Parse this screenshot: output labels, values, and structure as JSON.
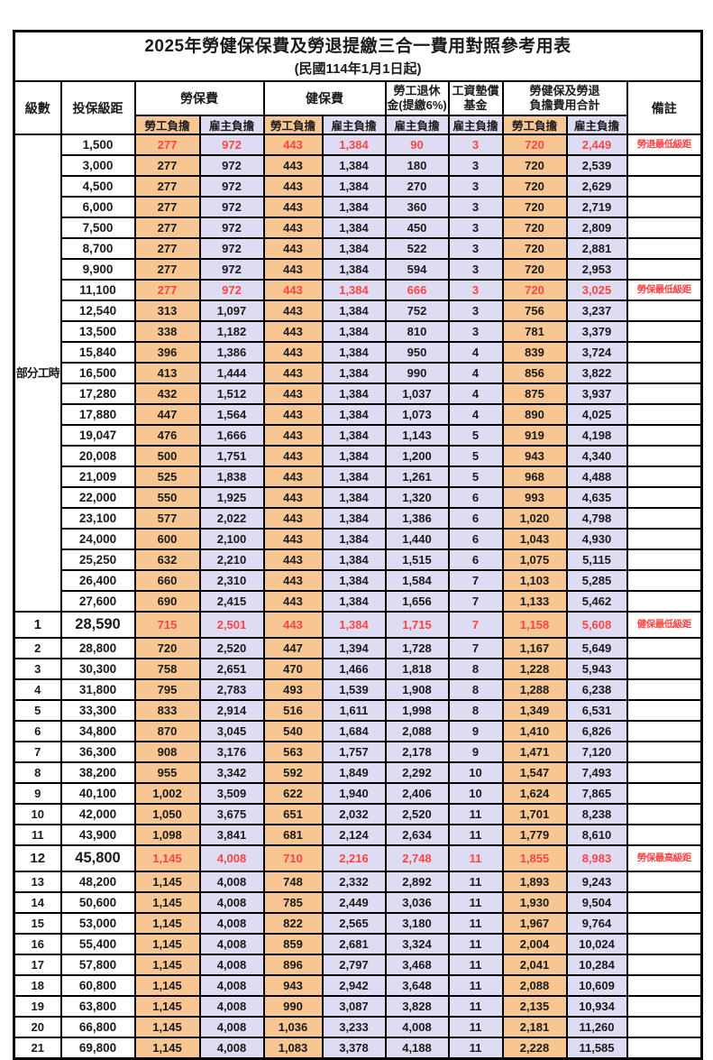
{
  "title": "2025年勞健保保費及勞退提繳三合一費用對照參考用表",
  "subtitle": "(民國114年1月1日起)",
  "columns": {
    "level": "級數",
    "bracket": "投保級距",
    "labor_group": "勞保費",
    "health_group": "健保費",
    "pension_group": [
      "勞工退休",
      "金(提繳6%)"
    ],
    "wage_fund_group": [
      "工資墊償",
      "基金"
    ],
    "total_group": [
      "勞健保及勞退",
      "負擔費用合計"
    ],
    "remark": "備註",
    "employee_share": "勞工負擔",
    "employer_share": "雇主負擔"
  },
  "part_time_label": "部分工時",
  "colors": {
    "employee_bg": "#F8C693",
    "employer_bg": "#DEDCF2",
    "highlight_text": "#FF4444",
    "border": "#000000"
  },
  "rows": [
    {
      "level": "",
      "bracket": "1,500",
      "labor_emp": "277",
      "labor_er": "972",
      "health_emp": "443",
      "health_er": "1,384",
      "pension_er": "90",
      "fund_er": "3",
      "total_emp": "720",
      "total_er": "2,449",
      "remark": "勞退最低級距",
      "highlight": true,
      "big": false
    },
    {
      "level": "",
      "bracket": "3,000",
      "labor_emp": "277",
      "labor_er": "972",
      "health_emp": "443",
      "health_er": "1,384",
      "pension_er": "180",
      "fund_er": "3",
      "total_emp": "720",
      "total_er": "2,539",
      "remark": "",
      "highlight": false,
      "big": false
    },
    {
      "level": "",
      "bracket": "4,500",
      "labor_emp": "277",
      "labor_er": "972",
      "health_emp": "443",
      "health_er": "1,384",
      "pension_er": "270",
      "fund_er": "3",
      "total_emp": "720",
      "total_er": "2,629",
      "remark": "",
      "highlight": false,
      "big": false
    },
    {
      "level": "",
      "bracket": "6,000",
      "labor_emp": "277",
      "labor_er": "972",
      "health_emp": "443",
      "health_er": "1,384",
      "pension_er": "360",
      "fund_er": "3",
      "total_emp": "720",
      "total_er": "2,719",
      "remark": "",
      "highlight": false,
      "big": false
    },
    {
      "level": "",
      "bracket": "7,500",
      "labor_emp": "277",
      "labor_er": "972",
      "health_emp": "443",
      "health_er": "1,384",
      "pension_er": "450",
      "fund_er": "3",
      "total_emp": "720",
      "total_er": "2,809",
      "remark": "",
      "highlight": false,
      "big": false
    },
    {
      "level": "",
      "bracket": "8,700",
      "labor_emp": "277",
      "labor_er": "972",
      "health_emp": "443",
      "health_er": "1,384",
      "pension_er": "522",
      "fund_er": "3",
      "total_emp": "720",
      "total_er": "2,881",
      "remark": "",
      "highlight": false,
      "big": false
    },
    {
      "level": "",
      "bracket": "9,900",
      "labor_emp": "277",
      "labor_er": "972",
      "health_emp": "443",
      "health_er": "1,384",
      "pension_er": "594",
      "fund_er": "3",
      "total_emp": "720",
      "total_er": "2,953",
      "remark": "",
      "highlight": false,
      "big": false
    },
    {
      "level": "",
      "bracket": "11,100",
      "labor_emp": "277",
      "labor_er": "972",
      "health_emp": "443",
      "health_er": "1,384",
      "pension_er": "666",
      "fund_er": "3",
      "total_emp": "720",
      "total_er": "3,025",
      "remark": "勞保最低級距",
      "highlight": true,
      "big": false
    },
    {
      "level": "",
      "bracket": "12,540",
      "labor_emp": "313",
      "labor_er": "1,097",
      "health_emp": "443",
      "health_er": "1,384",
      "pension_er": "752",
      "fund_er": "3",
      "total_emp": "756",
      "total_er": "3,237",
      "remark": "",
      "highlight": false,
      "big": false
    },
    {
      "level": "",
      "bracket": "13,500",
      "labor_emp": "338",
      "labor_er": "1,182",
      "health_emp": "443",
      "health_er": "1,384",
      "pension_er": "810",
      "fund_er": "3",
      "total_emp": "781",
      "total_er": "3,379",
      "remark": "",
      "highlight": false,
      "big": false
    },
    {
      "level": "",
      "bracket": "15,840",
      "labor_emp": "396",
      "labor_er": "1,386",
      "health_emp": "443",
      "health_er": "1,384",
      "pension_er": "950",
      "fund_er": "4",
      "total_emp": "839",
      "total_er": "3,724",
      "remark": "",
      "highlight": false,
      "big": false
    },
    {
      "level": "",
      "bracket": "16,500",
      "labor_emp": "413",
      "labor_er": "1,444",
      "health_emp": "443",
      "health_er": "1,384",
      "pension_er": "990",
      "fund_er": "4",
      "total_emp": "856",
      "total_er": "3,822",
      "remark": "",
      "highlight": false,
      "big": false
    },
    {
      "level": "",
      "bracket": "17,280",
      "labor_emp": "432",
      "labor_er": "1,512",
      "health_emp": "443",
      "health_er": "1,384",
      "pension_er": "1,037",
      "fund_er": "4",
      "total_emp": "875",
      "total_er": "3,937",
      "remark": "",
      "highlight": false,
      "big": false
    },
    {
      "level": "",
      "bracket": "17,880",
      "labor_emp": "447",
      "labor_er": "1,564",
      "health_emp": "443",
      "health_er": "1,384",
      "pension_er": "1,073",
      "fund_er": "4",
      "total_emp": "890",
      "total_er": "4,025",
      "remark": "",
      "highlight": false,
      "big": false
    },
    {
      "level": "",
      "bracket": "19,047",
      "labor_emp": "476",
      "labor_er": "1,666",
      "health_emp": "443",
      "health_er": "1,384",
      "pension_er": "1,143",
      "fund_er": "5",
      "total_emp": "919",
      "total_er": "4,198",
      "remark": "",
      "highlight": false,
      "big": false
    },
    {
      "level": "",
      "bracket": "20,008",
      "labor_emp": "500",
      "labor_er": "1,751",
      "health_emp": "443",
      "health_er": "1,384",
      "pension_er": "1,200",
      "fund_er": "5",
      "total_emp": "943",
      "total_er": "4,340",
      "remark": "",
      "highlight": false,
      "big": false
    },
    {
      "level": "",
      "bracket": "21,009",
      "labor_emp": "525",
      "labor_er": "1,838",
      "health_emp": "443",
      "health_er": "1,384",
      "pension_er": "1,261",
      "fund_er": "5",
      "total_emp": "968",
      "total_er": "4,488",
      "remark": "",
      "highlight": false,
      "big": false
    },
    {
      "level": "",
      "bracket": "22,000",
      "labor_emp": "550",
      "labor_er": "1,925",
      "health_emp": "443",
      "health_er": "1,384",
      "pension_er": "1,320",
      "fund_er": "6",
      "total_emp": "993",
      "total_er": "4,635",
      "remark": "",
      "highlight": false,
      "big": false
    },
    {
      "level": "",
      "bracket": "23,100",
      "labor_emp": "577",
      "labor_er": "2,022",
      "health_emp": "443",
      "health_er": "1,384",
      "pension_er": "1,386",
      "fund_er": "6",
      "total_emp": "1,020",
      "total_er": "4,798",
      "remark": "",
      "highlight": false,
      "big": false
    },
    {
      "level": "",
      "bracket": "24,000",
      "labor_emp": "600",
      "labor_er": "2,100",
      "health_emp": "443",
      "health_er": "1,384",
      "pension_er": "1,440",
      "fund_er": "6",
      "total_emp": "1,043",
      "total_er": "4,930",
      "remark": "",
      "highlight": false,
      "big": false
    },
    {
      "level": "",
      "bracket": "25,250",
      "labor_emp": "632",
      "labor_er": "2,210",
      "health_emp": "443",
      "health_er": "1,384",
      "pension_er": "1,515",
      "fund_er": "6",
      "total_emp": "1,075",
      "total_er": "5,115",
      "remark": "",
      "highlight": false,
      "big": false
    },
    {
      "level": "",
      "bracket": "26,400",
      "labor_emp": "660",
      "labor_er": "2,310",
      "health_emp": "443",
      "health_er": "1,384",
      "pension_er": "1,584",
      "fund_er": "7",
      "total_emp": "1,103",
      "total_er": "5,285",
      "remark": "",
      "highlight": false,
      "big": false
    },
    {
      "level": "",
      "bracket": "27,600",
      "labor_emp": "690",
      "labor_er": "2,415",
      "health_emp": "443",
      "health_er": "1,384",
      "pension_er": "1,656",
      "fund_er": "7",
      "total_emp": "1,133",
      "total_er": "5,462",
      "remark": "",
      "highlight": false,
      "big": false
    },
    {
      "level": "1",
      "bracket": "28,590",
      "labor_emp": "715",
      "labor_er": "2,501",
      "health_emp": "443",
      "health_er": "1,384",
      "pension_er": "1,715",
      "fund_er": "7",
      "total_emp": "1,158",
      "total_er": "5,608",
      "remark": "健保最低級距",
      "highlight": true,
      "big": true
    },
    {
      "level": "2",
      "bracket": "28,800",
      "labor_emp": "720",
      "labor_er": "2,520",
      "health_emp": "447",
      "health_er": "1,394",
      "pension_er": "1,728",
      "fund_er": "7",
      "total_emp": "1,167",
      "total_er": "5,649",
      "remark": "",
      "highlight": false,
      "big": false
    },
    {
      "level": "3",
      "bracket": "30,300",
      "labor_emp": "758",
      "labor_er": "2,651",
      "health_emp": "470",
      "health_er": "1,466",
      "pension_er": "1,818",
      "fund_er": "8",
      "total_emp": "1,228",
      "total_er": "5,943",
      "remark": "",
      "highlight": false,
      "big": false
    },
    {
      "level": "4",
      "bracket": "31,800",
      "labor_emp": "795",
      "labor_er": "2,783",
      "health_emp": "493",
      "health_er": "1,539",
      "pension_er": "1,908",
      "fund_er": "8",
      "total_emp": "1,288",
      "total_er": "6,238",
      "remark": "",
      "highlight": false,
      "big": false
    },
    {
      "level": "5",
      "bracket": "33,300",
      "labor_emp": "833",
      "labor_er": "2,914",
      "health_emp": "516",
      "health_er": "1,611",
      "pension_er": "1,998",
      "fund_er": "8",
      "total_emp": "1,349",
      "total_er": "6,531",
      "remark": "",
      "highlight": false,
      "big": false
    },
    {
      "level": "6",
      "bracket": "34,800",
      "labor_emp": "870",
      "labor_er": "3,045",
      "health_emp": "540",
      "health_er": "1,684",
      "pension_er": "2,088",
      "fund_er": "9",
      "total_emp": "1,410",
      "total_er": "6,826",
      "remark": "",
      "highlight": false,
      "big": false
    },
    {
      "level": "7",
      "bracket": "36,300",
      "labor_emp": "908",
      "labor_er": "3,176",
      "health_emp": "563",
      "health_er": "1,757",
      "pension_er": "2,178",
      "fund_er": "9",
      "total_emp": "1,471",
      "total_er": "7,120",
      "remark": "",
      "highlight": false,
      "big": false
    },
    {
      "level": "8",
      "bracket": "38,200",
      "labor_emp": "955",
      "labor_er": "3,342",
      "health_emp": "592",
      "health_er": "1,849",
      "pension_er": "2,292",
      "fund_er": "10",
      "total_emp": "1,547",
      "total_er": "7,493",
      "remark": "",
      "highlight": false,
      "big": false
    },
    {
      "level": "9",
      "bracket": "40,100",
      "labor_emp": "1,002",
      "labor_er": "3,509",
      "health_emp": "622",
      "health_er": "1,940",
      "pension_er": "2,406",
      "fund_er": "10",
      "total_emp": "1,624",
      "total_er": "7,865",
      "remark": "",
      "highlight": false,
      "big": false
    },
    {
      "level": "10",
      "bracket": "42,000",
      "labor_emp": "1,050",
      "labor_er": "3,675",
      "health_emp": "651",
      "health_er": "2,032",
      "pension_er": "2,520",
      "fund_er": "11",
      "total_emp": "1,701",
      "total_er": "8,238",
      "remark": "",
      "highlight": false,
      "big": false
    },
    {
      "level": "11",
      "bracket": "43,900",
      "labor_emp": "1,098",
      "labor_er": "3,841",
      "health_emp": "681",
      "health_er": "2,124",
      "pension_er": "2,634",
      "fund_er": "11",
      "total_emp": "1,779",
      "total_er": "8,610",
      "remark": "",
      "highlight": false,
      "big": false
    },
    {
      "level": "12",
      "bracket": "45,800",
      "labor_emp": "1,145",
      "labor_er": "4,008",
      "health_emp": "710",
      "health_er": "2,216",
      "pension_er": "2,748",
      "fund_er": "11",
      "total_emp": "1,855",
      "total_er": "8,983",
      "remark": "勞保最高級距",
      "highlight": true,
      "big": true
    },
    {
      "level": "13",
      "bracket": "48,200",
      "labor_emp": "1,145",
      "labor_er": "4,008",
      "health_emp": "748",
      "health_er": "2,332",
      "pension_er": "2,892",
      "fund_er": "11",
      "total_emp": "1,893",
      "total_er": "9,243",
      "remark": "",
      "highlight": false,
      "big": false
    },
    {
      "level": "14",
      "bracket": "50,600",
      "labor_emp": "1,145",
      "labor_er": "4,008",
      "health_emp": "785",
      "health_er": "2,449",
      "pension_er": "3,036",
      "fund_er": "11",
      "total_emp": "1,930",
      "total_er": "9,504",
      "remark": "",
      "highlight": false,
      "big": false
    },
    {
      "level": "15",
      "bracket": "53,000",
      "labor_emp": "1,145",
      "labor_er": "4,008",
      "health_emp": "822",
      "health_er": "2,565",
      "pension_er": "3,180",
      "fund_er": "11",
      "total_emp": "1,967",
      "total_er": "9,764",
      "remark": "",
      "highlight": false,
      "big": false
    },
    {
      "level": "16",
      "bracket": "55,400",
      "labor_emp": "1,145",
      "labor_er": "4,008",
      "health_emp": "859",
      "health_er": "2,681",
      "pension_er": "3,324",
      "fund_er": "11",
      "total_emp": "2,004",
      "total_er": "10,024",
      "remark": "",
      "highlight": false,
      "big": false
    },
    {
      "level": "17",
      "bracket": "57,800",
      "labor_emp": "1,145",
      "labor_er": "4,008",
      "health_emp": "896",
      "health_er": "2,797",
      "pension_er": "3,468",
      "fund_er": "11",
      "total_emp": "2,041",
      "total_er": "10,284",
      "remark": "",
      "highlight": false,
      "big": false
    },
    {
      "level": "18",
      "bracket": "60,800",
      "labor_emp": "1,145",
      "labor_er": "4,008",
      "health_emp": "943",
      "health_er": "2,942",
      "pension_er": "3,648",
      "fund_er": "11",
      "total_emp": "2,088",
      "total_er": "10,609",
      "remark": "",
      "highlight": false,
      "big": false
    },
    {
      "level": "19",
      "bracket": "63,800",
      "labor_emp": "1,145",
      "labor_er": "4,008",
      "health_emp": "990",
      "health_er": "3,087",
      "pension_er": "3,828",
      "fund_er": "11",
      "total_emp": "2,135",
      "total_er": "10,934",
      "remark": "",
      "highlight": false,
      "big": false
    },
    {
      "level": "20",
      "bracket": "66,800",
      "labor_emp": "1,145",
      "labor_er": "4,008",
      "health_emp": "1,036",
      "health_er": "3,233",
      "pension_er": "4,008",
      "fund_er": "11",
      "total_emp": "2,181",
      "total_er": "11,260",
      "remark": "",
      "highlight": false,
      "big": false
    },
    {
      "level": "21",
      "bracket": "69,800",
      "labor_emp": "1,145",
      "labor_er": "4,008",
      "health_emp": "1,083",
      "health_er": "3,378",
      "pension_er": "4,188",
      "fund_er": "11",
      "total_emp": "2,228",
      "total_er": "11,585",
      "remark": "",
      "highlight": false,
      "big": false
    }
  ]
}
